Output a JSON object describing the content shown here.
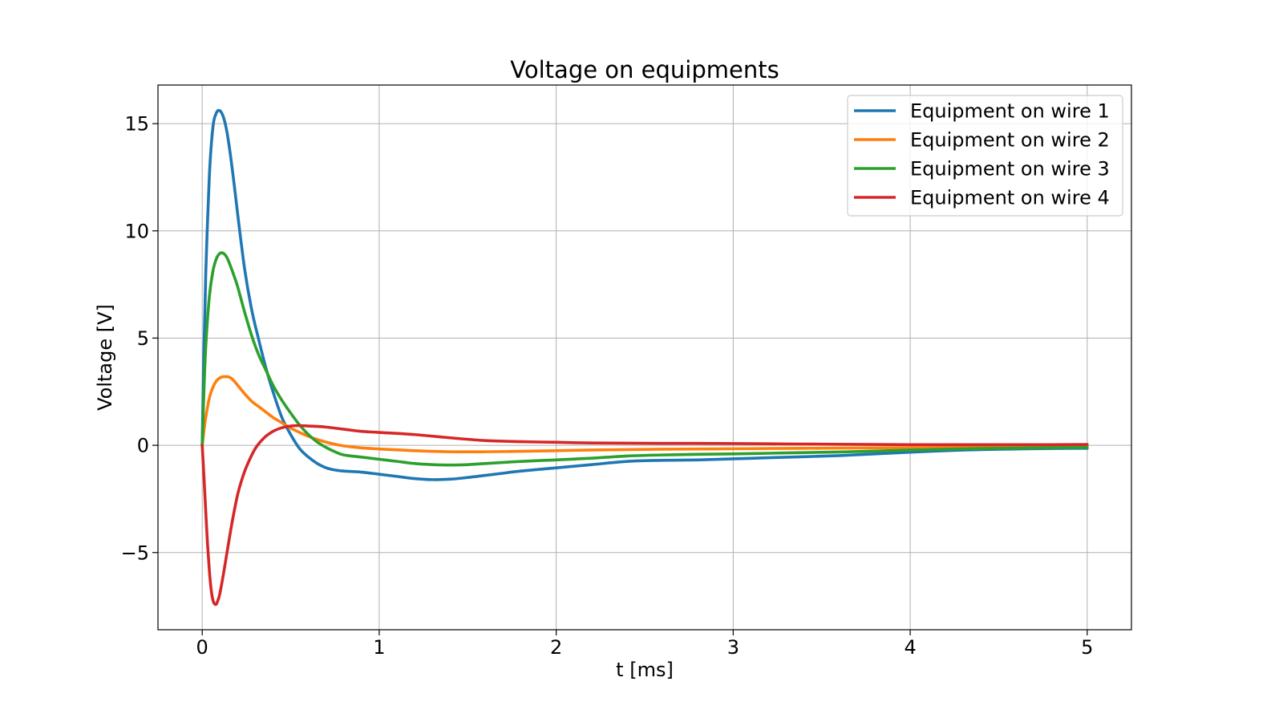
{
  "chart_data": {
    "type": "line",
    "title": "Voltage on equipments",
    "xlabel": "t [ms]",
    "ylabel": "Voltage [V]",
    "xlim": [
      -0.25,
      5.25
    ],
    "ylim": [
      -8.6,
      16.8
    ],
    "xticks": [
      0,
      1,
      2,
      3,
      4,
      5
    ],
    "xtick_labels": [
      "0",
      "1",
      "2",
      "3",
      "4",
      "5"
    ],
    "yticks": [
      -5,
      0,
      5,
      10,
      15
    ],
    "ytick_labels": [
      "−5",
      "0",
      "5",
      "10",
      "15"
    ],
    "grid": true,
    "legend_position": "top-right",
    "series": [
      {
        "name": "Equipment on wire 1",
        "color": "#1f77b4",
        "x": [
          0,
          0.005,
          0.01,
          0.02,
          0.04,
          0.06,
          0.08,
          0.1,
          0.12,
          0.14,
          0.16,
          0.18,
          0.2,
          0.24,
          0.28,
          0.32,
          0.36,
          0.4,
          0.45,
          0.5,
          0.55,
          0.6,
          0.65,
          0.7,
          0.75,
          0.8,
          0.9,
          1.0,
          1.1,
          1.2,
          1.3,
          1.4,
          1.5,
          1.6,
          1.7,
          1.8,
          2.0,
          2.2,
          2.4,
          2.6,
          2.8,
          3.0,
          3.2,
          3.4,
          3.6,
          3.8,
          4.0,
          4.2,
          4.4,
          4.6,
          4.8,
          5.0
        ],
        "y": [
          0,
          2.5,
          4.5,
          8.0,
          12.5,
          14.8,
          15.5,
          15.6,
          15.3,
          14.6,
          13.5,
          12.2,
          10.8,
          8.2,
          6.3,
          4.9,
          3.6,
          2.5,
          1.3,
          0.5,
          -0.15,
          -0.55,
          -0.85,
          -1.05,
          -1.15,
          -1.2,
          -1.25,
          -1.35,
          -1.45,
          -1.55,
          -1.6,
          -1.58,
          -1.5,
          -1.4,
          -1.3,
          -1.2,
          -1.05,
          -0.9,
          -0.75,
          -0.7,
          -0.68,
          -0.63,
          -0.58,
          -0.53,
          -0.48,
          -0.4,
          -0.32,
          -0.25,
          -0.2,
          -0.17,
          -0.15,
          -0.14
        ]
      },
      {
        "name": "Equipment on wire 2",
        "color": "#ff7f0e",
        "x": [
          0,
          0.01,
          0.02,
          0.04,
          0.06,
          0.08,
          0.1,
          0.12,
          0.14,
          0.16,
          0.18,
          0.2,
          0.24,
          0.28,
          0.32,
          0.36,
          0.4,
          0.45,
          0.5,
          0.55,
          0.6,
          0.65,
          0.7,
          0.75,
          0.8,
          0.9,
          1.0,
          1.2,
          1.4,
          1.6,
          1.8,
          2.0,
          2.2,
          2.4,
          2.6,
          2.8,
          3.0,
          3.2,
          3.4,
          3.6,
          3.8,
          4.0,
          4.2,
          4.4,
          4.6,
          4.8,
          5.0
        ],
        "y": [
          0,
          0.7,
          1.3,
          2.2,
          2.7,
          3.0,
          3.15,
          3.2,
          3.2,
          3.15,
          3.0,
          2.8,
          2.4,
          2.05,
          1.8,
          1.55,
          1.3,
          1.05,
          0.8,
          0.6,
          0.42,
          0.27,
          0.15,
          0.05,
          -0.03,
          -0.12,
          -0.17,
          -0.25,
          -0.3,
          -0.3,
          -0.28,
          -0.25,
          -0.22,
          -0.2,
          -0.18,
          -0.17,
          -0.16,
          -0.15,
          -0.14,
          -0.13,
          -0.12,
          -0.11,
          -0.1,
          -0.09,
          -0.08,
          -0.07,
          -0.06
        ]
      },
      {
        "name": "Equipment on wire 3",
        "color": "#2ca02c",
        "x": [
          0,
          0.005,
          0.01,
          0.02,
          0.04,
          0.06,
          0.08,
          0.1,
          0.12,
          0.14,
          0.16,
          0.18,
          0.2,
          0.24,
          0.28,
          0.32,
          0.36,
          0.4,
          0.45,
          0.5,
          0.55,
          0.6,
          0.65,
          0.7,
          0.75,
          0.8,
          0.9,
          1.0,
          1.1,
          1.2,
          1.3,
          1.4,
          1.5,
          1.6,
          1.8,
          2.0,
          2.2,
          2.4,
          2.6,
          2.8,
          3.0,
          3.2,
          3.4,
          3.6,
          3.8,
          4.0,
          4.2,
          4.4,
          4.6,
          4.8,
          5.0
        ],
        "y": [
          0,
          1.3,
          2.6,
          4.6,
          6.9,
          8.1,
          8.7,
          8.95,
          8.95,
          8.75,
          8.35,
          7.9,
          7.4,
          6.2,
          5.1,
          4.2,
          3.5,
          2.8,
          2.1,
          1.5,
          0.95,
          0.5,
          0.15,
          -0.1,
          -0.3,
          -0.45,
          -0.55,
          -0.65,
          -0.75,
          -0.85,
          -0.9,
          -0.92,
          -0.9,
          -0.85,
          -0.75,
          -0.68,
          -0.6,
          -0.5,
          -0.45,
          -0.42,
          -0.4,
          -0.37,
          -0.34,
          -0.31,
          -0.27,
          -0.22,
          -0.18,
          -0.15,
          -0.13,
          -0.11,
          -0.1
        ]
      },
      {
        "name": "Equipment on wire 4",
        "color": "#d62728",
        "x": [
          0,
          0.01,
          0.02,
          0.03,
          0.04,
          0.05,
          0.06,
          0.07,
          0.08,
          0.09,
          0.1,
          0.12,
          0.14,
          0.16,
          0.18,
          0.2,
          0.22,
          0.25,
          0.3,
          0.35,
          0.4,
          0.45,
          0.5,
          0.55,
          0.6,
          0.65,
          0.7,
          0.8,
          0.9,
          1.0,
          1.2,
          1.4,
          1.6,
          1.8,
          2.0,
          2.2,
          2.4,
          2.6,
          2.8,
          3.0,
          3.2,
          3.4,
          3.6,
          3.8,
          4.0,
          4.2,
          4.4,
          4.6,
          4.8,
          5.0
        ],
        "y": [
          0,
          -1.5,
          -3.1,
          -4.6,
          -5.8,
          -6.7,
          -7.2,
          -7.4,
          -7.4,
          -7.2,
          -6.9,
          -6.0,
          -5.0,
          -4.0,
          -3.1,
          -2.3,
          -1.7,
          -1.0,
          -0.15,
          0.35,
          0.65,
          0.82,
          0.9,
          0.92,
          0.9,
          0.88,
          0.85,
          0.75,
          0.65,
          0.6,
          0.5,
          0.35,
          0.22,
          0.17,
          0.14,
          0.11,
          0.1,
          0.09,
          0.09,
          0.08,
          0.07,
          0.06,
          0.05,
          0.04,
          0.03,
          0.03,
          0.03,
          0.03,
          0.03,
          0.04
        ]
      }
    ]
  }
}
